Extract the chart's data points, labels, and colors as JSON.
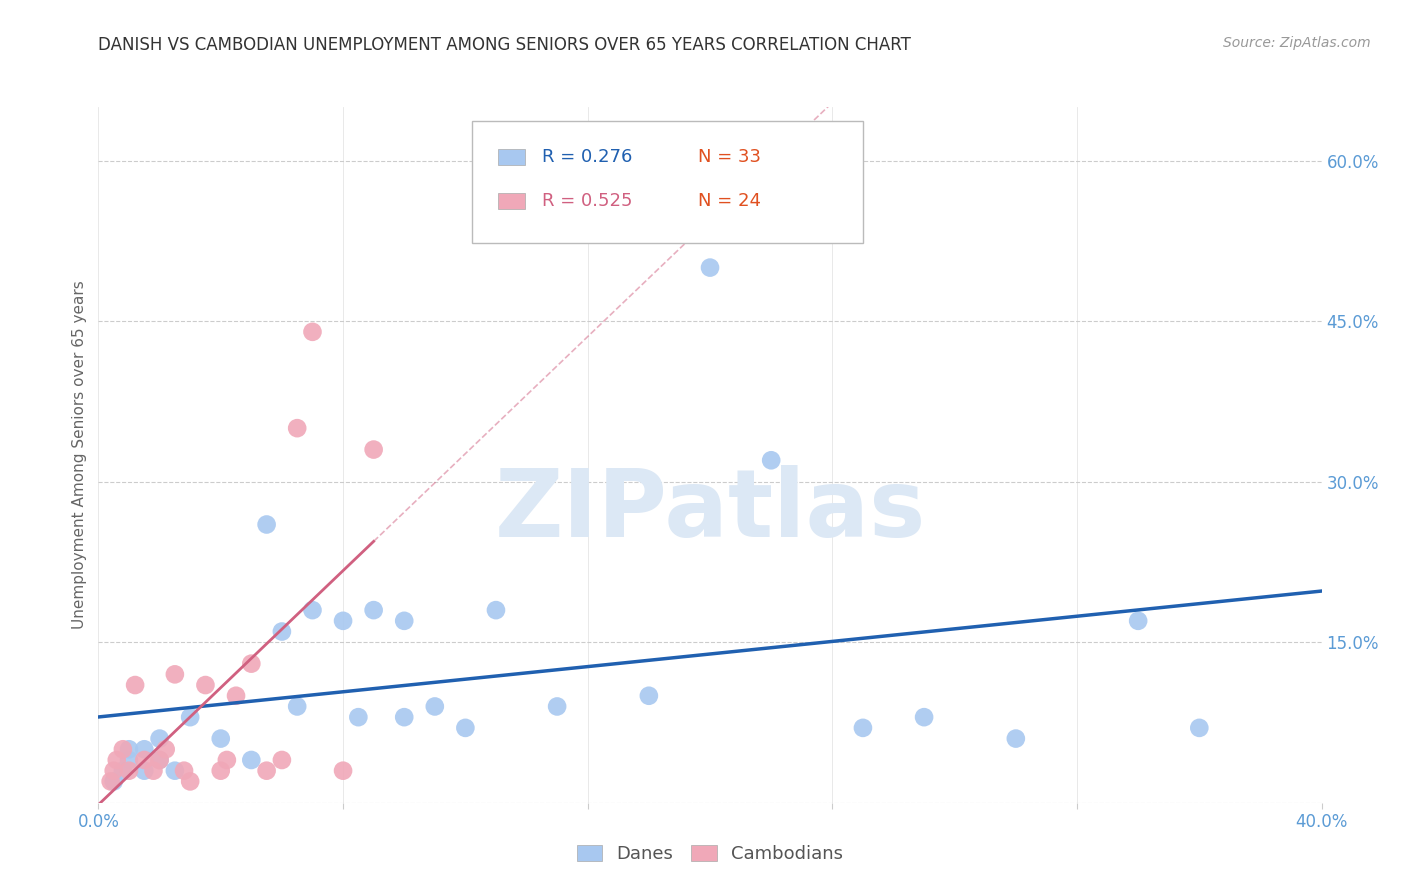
{
  "title": "DANISH VS CAMBODIAN UNEMPLOYMENT AMONG SENIORS OVER 65 YEARS CORRELATION CHART",
  "source": "Source: ZipAtlas.com",
  "ylabel": "Unemployment Among Seniors over 65 years",
  "xlim": [
    0.0,
    0.4
  ],
  "ylim": [
    0.0,
    0.65
  ],
  "xticks": [
    0.0,
    0.08,
    0.16,
    0.24,
    0.32,
    0.4
  ],
  "xtick_labels": [
    "0.0%",
    "",
    "",
    "",
    "",
    "40.0%"
  ],
  "yticks_right": [
    0.0,
    0.15,
    0.3,
    0.45,
    0.6
  ],
  "ytick_labels_right": [
    "",
    "15.0%",
    "30.0%",
    "45.0%",
    "60.0%"
  ],
  "grid_color": "#cccccc",
  "background_color": "#ffffff",
  "danes_color": "#a8c8f0",
  "cambodians_color": "#f0a8b8",
  "danes_line_color": "#2060b0",
  "cambodians_line_color": "#d06080",
  "danes_R": 0.276,
  "danes_N": 33,
  "cambodians_R": 0.525,
  "cambodians_N": 24,
  "watermark": "ZIPatlas",
  "watermark_color": "#dce8f5",
  "danes_x": [
    0.005,
    0.008,
    0.01,
    0.01,
    0.015,
    0.015,
    0.02,
    0.02,
    0.025,
    0.03,
    0.04,
    0.05,
    0.055,
    0.06,
    0.065,
    0.07,
    0.08,
    0.085,
    0.09,
    0.1,
    0.1,
    0.11,
    0.12,
    0.13,
    0.15,
    0.18,
    0.2,
    0.22,
    0.25,
    0.27,
    0.3,
    0.34,
    0.36
  ],
  "danes_y": [
    0.02,
    0.03,
    0.04,
    0.05,
    0.03,
    0.05,
    0.04,
    0.06,
    0.03,
    0.08,
    0.06,
    0.04,
    0.26,
    0.16,
    0.09,
    0.18,
    0.17,
    0.08,
    0.18,
    0.17,
    0.08,
    0.09,
    0.07,
    0.18,
    0.09,
    0.1,
    0.5,
    0.32,
    0.07,
    0.08,
    0.06,
    0.17,
    0.07
  ],
  "cambodians_x": [
    0.004,
    0.005,
    0.006,
    0.008,
    0.01,
    0.012,
    0.015,
    0.018,
    0.02,
    0.022,
    0.025,
    0.028,
    0.03,
    0.035,
    0.04,
    0.042,
    0.045,
    0.05,
    0.055,
    0.06,
    0.065,
    0.07,
    0.08,
    0.09
  ],
  "cambodians_y": [
    0.02,
    0.03,
    0.04,
    0.05,
    0.03,
    0.11,
    0.04,
    0.03,
    0.04,
    0.05,
    0.12,
    0.03,
    0.02,
    0.11,
    0.03,
    0.04,
    0.1,
    0.13,
    0.03,
    0.04,
    0.35,
    0.44,
    0.03,
    0.33
  ]
}
